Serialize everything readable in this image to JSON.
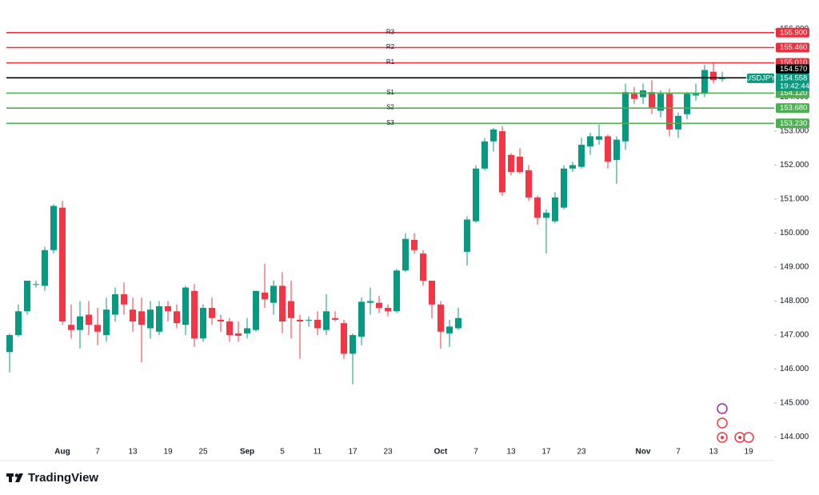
{
  "brand": "TradingView",
  "chart_data": {
    "type": "candlestick",
    "symbol": "USDJPY",
    "countdown": "19:42:44",
    "up_color": "#089981",
    "down_color": "#f23645",
    "ylim": [
      143.4,
      156.86
    ],
    "yticks": [
      {
        "value": 144,
        "label": "144.000"
      },
      {
        "value": 145,
        "label": "145.000"
      },
      {
        "value": 146,
        "label": "146.000"
      },
      {
        "value": 147,
        "label": "147.000"
      },
      {
        "value": 148,
        "label": "148.000"
      },
      {
        "value": 149,
        "label": "149.000"
      },
      {
        "value": 150,
        "label": "150.000"
      },
      {
        "value": 151,
        "label": "151.000"
      },
      {
        "value": 152,
        "label": "152.000"
      },
      {
        "value": 153,
        "label": "153.000"
      },
      {
        "value": 154,
        "label": "154.000"
      },
      {
        "value": 155,
        "label": "155.000"
      },
      {
        "value": 156,
        "label": "156.000"
      }
    ],
    "categories": [
      null,
      null,
      null,
      null,
      null,
      null,
      "Aug",
      null,
      null,
      null,
      "7",
      null,
      null,
      null,
      "13",
      null,
      null,
      null,
      "19",
      null,
      null,
      null,
      "25",
      null,
      null,
      null,
      null,
      "Sep",
      null,
      null,
      null,
      "5",
      null,
      null,
      null,
      "11",
      null,
      null,
      null,
      "17",
      null,
      null,
      null,
      "23",
      null,
      null,
      null,
      null,
      null,
      "Oct",
      null,
      null,
      null,
      "7",
      null,
      null,
      null,
      "13",
      null,
      null,
      null,
      "17",
      null,
      null,
      null,
      "23",
      null,
      null,
      null,
      null,
      null,
      null,
      "Nov",
      null,
      null,
      null,
      "7",
      null,
      null,
      null,
      "13",
      null,
      null,
      null,
      "19"
    ],
    "open": [
      146.5,
      147.0,
      147.7,
      148.5,
      148.45,
      149.5,
      150.75,
      147.3,
      147.15,
      147.6,
      147.3,
      147.0,
      147.6,
      148.2,
      147.75,
      147.7,
      147.2,
      147.1,
      147.85,
      147.7,
      147.3,
      148.3,
      146.9,
      147.8,
      147.45,
      147.4,
      147.05,
      147.05,
      147.15,
      148.25,
      147.95,
      148.45,
      148.0,
      147.45,
      147.45,
      147.45,
      147.15,
      147.5,
      147.35,
      146.45,
      146.95,
      147.95,
      147.95,
      147.8,
      147.7,
      148.9,
      149.8,
      149.4,
      148.6,
      147.9,
      147.05,
      147.2,
      149.45,
      150.35,
      151.9,
      152.7,
      153.0,
      152.3,
      152.25,
      151.85,
      151.05,
      150.45,
      150.35,
      150.75,
      151.9,
      151.95,
      152.55,
      152.75,
      152.85,
      152.15,
      152.7,
      154.1,
      154.0,
      154.15,
      153.6,
      154.1,
      153.05,
      153.5,
      154.05,
      154.1,
      154.75,
      154.55,
      null,
      null,
      null
    ],
    "high": [
      147.05,
      147.9,
      148.6,
      148.6,
      149.6,
      150.85,
      150.95,
      147.9,
      148.0,
      148.0,
      147.8,
      148.1,
      148.4,
      148.55,
      148.1,
      148.1,
      148.0,
      148.0,
      148.0,
      147.9,
      148.45,
      148.5,
      147.9,
      148.1,
      147.6,
      147.5,
      147.4,
      147.5,
      148.3,
      149.1,
      148.6,
      148.85,
      148.6,
      147.6,
      147.55,
      147.7,
      148.2,
      147.7,
      147.45,
      147.05,
      148.1,
      148.4,
      148.15,
      147.9,
      148.95,
      150.0,
      150.0,
      149.5,
      148.6,
      148.0,
      147.45,
      147.8,
      150.5,
      152.0,
      152.8,
      153.1,
      153.15,
      152.35,
      152.5,
      152.0,
      151.1,
      150.7,
      151.2,
      152.0,
      152.1,
      152.8,
      152.95,
      153.2,
      152.9,
      152.85,
      154.4,
      154.3,
      154.4,
      154.5,
      154.2,
      154.25,
      153.55,
      154.15,
      154.4,
      154.95,
      155.0,
      154.75,
      null,
      null,
      null
    ],
    "low": [
      145.9,
      146.95,
      147.6,
      148.4,
      148.3,
      149.4,
      147.3,
      146.9,
      146.6,
      147.0,
      146.7,
      146.8,
      147.4,
      147.6,
      147.1,
      146.2,
      146.9,
      147.0,
      147.4,
      147.2,
      147.0,
      146.65,
      146.8,
      147.3,
      147.1,
      146.8,
      146.8,
      146.9,
      147.1,
      147.8,
      147.6,
      147.05,
      146.9,
      146.3,
      147.25,
      147.0,
      147.0,
      147.4,
      146.3,
      145.55,
      146.7,
      147.6,
      147.65,
      147.55,
      147.65,
      148.85,
      149.4,
      148.45,
      147.5,
      146.6,
      146.65,
      147.15,
      149.05,
      150.3,
      151.85,
      152.4,
      151.1,
      151.7,
      151.75,
      150.95,
      150.25,
      149.4,
      150.3,
      150.7,
      151.8,
      151.9,
      152.3,
      152.6,
      151.9,
      151.45,
      152.45,
      153.8,
      153.8,
      153.5,
      153.4,
      152.85,
      152.8,
      153.35,
      153.9,
      154.0,
      154.4,
      154.45,
      null,
      null,
      null
    ],
    "close": [
      147.0,
      147.7,
      148.6,
      148.5,
      149.5,
      150.8,
      147.4,
      147.15,
      147.55,
      147.3,
      147.1,
      147.75,
      148.2,
      147.9,
      147.4,
      147.3,
      147.75,
      147.85,
      147.7,
      147.35,
      148.4,
      146.9,
      147.8,
      147.5,
      147.4,
      147.0,
      146.98,
      147.2,
      148.3,
      148.05,
      148.45,
      147.4,
      147.5,
      147.4,
      147.45,
      147.2,
      147.7,
      147.45,
      146.45,
      147.0,
      147.98,
      148.0,
      147.8,
      147.7,
      148.9,
      149.83,
      149.5,
      148.6,
      147.9,
      147.1,
      147.25,
      147.5,
      150.4,
      151.9,
      152.7,
      153.05,
      151.2,
      151.8,
      151.8,
      151.05,
      150.45,
      150.6,
      151.05,
      151.9,
      152.0,
      152.6,
      152.85,
      152.85,
      152.1,
      152.75,
      154.15,
      153.95,
      154.2,
      153.7,
      154.1,
      153.05,
      153.45,
      154.1,
      154.1,
      154.8,
      154.5,
      154.558,
      null,
      null,
      null
    ],
    "levels": {
      "names": [
        "R3",
        "R2",
        "R1",
        null,
        "S1",
        "S2",
        "S3"
      ],
      "values": [
        155.9,
        155.46,
        155.01,
        154.57,
        154.12,
        153.68,
        153.23
      ],
      "value_labels": [
        "155.900",
        "155.460",
        "155.010",
        "154.570",
        "154.120",
        "153.680",
        "153.230"
      ],
      "colors": [
        "#e8303e",
        "#e8303e",
        "#e8303e",
        "#000000",
        "#4caf50",
        "#4caf50",
        "#4caf50"
      ]
    }
  }
}
